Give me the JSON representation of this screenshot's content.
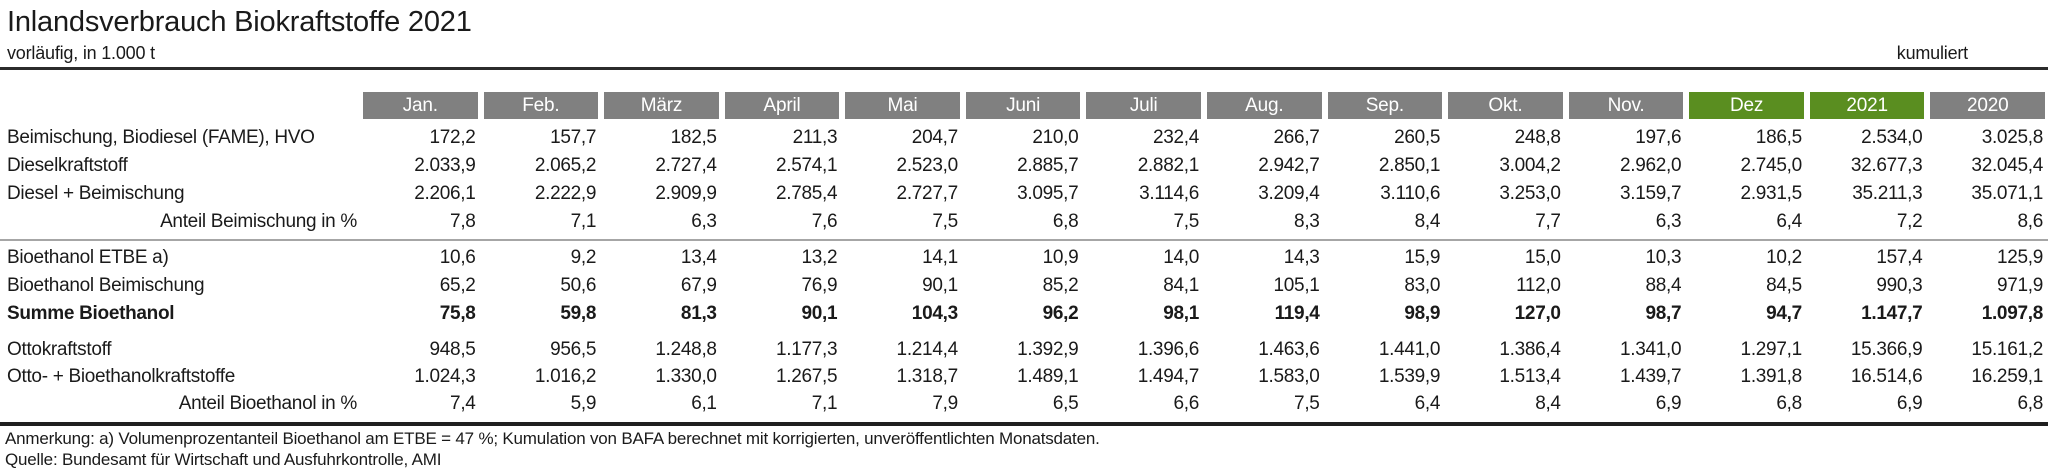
{
  "header": {
    "title": "Inlandsverbrauch Biokraftstoffe 2021",
    "subtitle": "vorläufig, in 1.000 t",
    "cumulative_label": "kumuliert"
  },
  "colors": {
    "header_gray": "#808080",
    "header_green": "#5a8e20",
    "header_text": "#ffffff",
    "rule_dark": "#2b2b2b",
    "rule_gray": "#a6a6a6"
  },
  "table": {
    "columns": [
      {
        "id": "jan",
        "label": "Jan.",
        "highlight": false
      },
      {
        "id": "feb",
        "label": "Feb.",
        "highlight": false
      },
      {
        "id": "maerz",
        "label": "März",
        "highlight": false
      },
      {
        "id": "april",
        "label": "April",
        "highlight": false
      },
      {
        "id": "mai",
        "label": "Mai",
        "highlight": false
      },
      {
        "id": "juni",
        "label": "Juni",
        "highlight": false
      },
      {
        "id": "juli",
        "label": "Juli",
        "highlight": false
      },
      {
        "id": "aug",
        "label": "Aug.",
        "highlight": false
      },
      {
        "id": "sep",
        "label": "Sep.",
        "highlight": false
      },
      {
        "id": "okt",
        "label": "Okt.",
        "highlight": false
      },
      {
        "id": "nov",
        "label": "Nov.",
        "highlight": false
      },
      {
        "id": "dez",
        "label": "Dez",
        "highlight": true
      },
      {
        "id": "2021",
        "label": "2021",
        "highlight": true
      },
      {
        "id": "2020",
        "label": "2020",
        "highlight": false
      }
    ],
    "rows": [
      {
        "label": "Beimischung, Biodiesel (FAME), HVO",
        "align": "left",
        "bold": false,
        "divider_after": false,
        "gap_after": false,
        "compact": false,
        "values": [
          "172,2",
          "157,7",
          "182,5",
          "211,3",
          "204,7",
          "210,0",
          "232,4",
          "266,7",
          "260,5",
          "248,8",
          "197,6",
          "186,5",
          "2.534,0",
          "3.025,8"
        ]
      },
      {
        "label": "Dieselkraftstoff",
        "align": "left",
        "bold": false,
        "divider_after": false,
        "gap_after": false,
        "compact": false,
        "values": [
          "2.033,9",
          "2.065,2",
          "2.727,4",
          "2.574,1",
          "2.523,0",
          "2.885,7",
          "2.882,1",
          "2.942,7",
          "2.850,1",
          "3.004,2",
          "2.962,0",
          "2.745,0",
          "32.677,3",
          "32.045,4"
        ]
      },
      {
        "label": "Diesel + Beimischung",
        "align": "left",
        "bold": false,
        "divider_after": false,
        "gap_after": false,
        "compact": false,
        "values": [
          "2.206,1",
          "2.222,9",
          "2.909,9",
          "2.785,4",
          "2.727,7",
          "3.095,7",
          "3.114,6",
          "3.209,4",
          "3.110,6",
          "3.253,0",
          "3.159,7",
          "2.931,5",
          "35.211,3",
          "35.071,1"
        ]
      },
      {
        "label": "Anteil Beimischung in %",
        "align": "right",
        "bold": false,
        "divider_after": true,
        "gap_after": false,
        "compact": false,
        "values": [
          "7,8",
          "7,1",
          "6,3",
          "7,6",
          "7,5",
          "6,8",
          "7,5",
          "8,3",
          "8,4",
          "7,7",
          "6,3",
          "6,4",
          "7,2",
          "8,6"
        ]
      },
      {
        "label": "Bioethanol ETBE a)",
        "align": "left",
        "bold": false,
        "divider_after": false,
        "gap_after": false,
        "compact": false,
        "values": [
          "10,6",
          "9,2",
          "13,4",
          "13,2",
          "14,1",
          "10,9",
          "14,0",
          "14,3",
          "15,9",
          "15,0",
          "10,3",
          "10,2",
          "157,4",
          "125,9"
        ]
      },
      {
        "label": "Bioethanol Beimischung",
        "align": "left",
        "bold": false,
        "divider_after": false,
        "gap_after": false,
        "compact": false,
        "values": [
          "65,2",
          "50,6",
          "67,9",
          "76,9",
          "90,1",
          "85,2",
          "84,1",
          "105,1",
          "83,0",
          "112,0",
          "88,4",
          "84,5",
          "990,3",
          "971,9"
        ]
      },
      {
        "label": "Summe Bioethanol",
        "align": "left",
        "bold": true,
        "divider_after": false,
        "gap_after": true,
        "compact": false,
        "values": [
          "75,8",
          "59,8",
          "81,3",
          "90,1",
          "104,3",
          "96,2",
          "98,1",
          "119,4",
          "98,9",
          "127,0",
          "98,7",
          "94,7",
          "1.147,7",
          "1.097,8"
        ]
      },
      {
        "label": "Ottokraftstoff",
        "align": "left",
        "bold": false,
        "divider_after": false,
        "gap_after": false,
        "compact": true,
        "values": [
          "948,5",
          "956,5",
          "1.248,8",
          "1.177,3",
          "1.214,4",
          "1.392,9",
          "1.396,6",
          "1.463,6",
          "1.441,0",
          "1.386,4",
          "1.341,0",
          "1.297,1",
          "15.366,9",
          "15.161,2"
        ]
      },
      {
        "label": "Otto- + Bioethanolkraftstoffe",
        "align": "left",
        "bold": false,
        "divider_after": false,
        "gap_after": false,
        "compact": true,
        "values": [
          "1.024,3",
          "1.016,2",
          "1.330,0",
          "1.267,5",
          "1.318,7",
          "1.489,1",
          "1.494,7",
          "1.583,0",
          "1.539,9",
          "1.513,4",
          "1.439,7",
          "1.391,8",
          "16.514,6",
          "16.259,1"
        ]
      },
      {
        "label": "Anteil Bioethanol in %",
        "align": "right",
        "bold": false,
        "divider_after": false,
        "gap_after": false,
        "compact": true,
        "values": [
          "7,4",
          "5,9",
          "6,1",
          "7,1",
          "7,9",
          "6,5",
          "6,6",
          "7,5",
          "6,4",
          "8,4",
          "6,9",
          "6,8",
          "6,9",
          "6,8"
        ]
      }
    ]
  },
  "footer": {
    "note": "Anmerkung: a) Volumenprozentanteil Bioethanol am ETBE = 47 %; Kumulation von BAFA berechnet mit korrigierten, unveröffentlichten Monatsdaten.",
    "source": "Quelle: Bundesamt für Wirtschaft und Ausfuhrkontrolle, AMI"
  }
}
